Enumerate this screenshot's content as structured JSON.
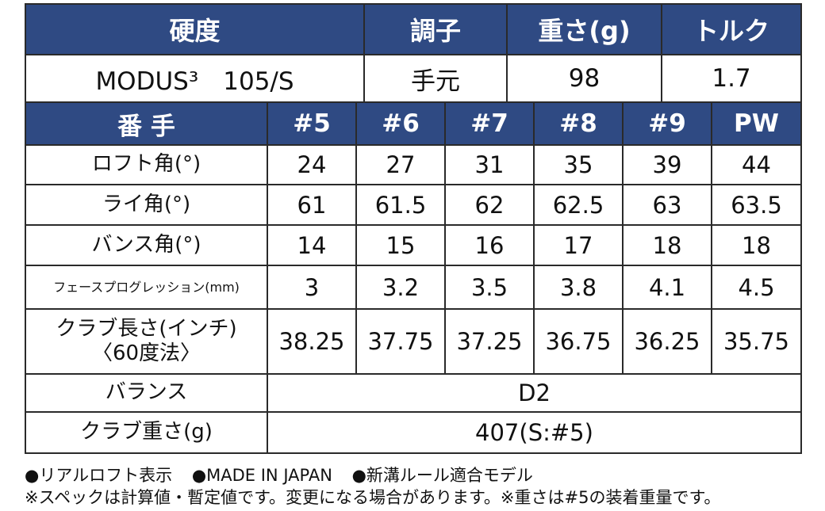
{
  "shaft": {
    "headers": [
      "硬度",
      "調子",
      "重さ(g)",
      "トルク"
    ],
    "values": [
      "MODUS³　105/S",
      "手元",
      "98",
      "1.7"
    ]
  },
  "spec": {
    "header_label": "番 手",
    "columns": [
      "#5",
      "#6",
      "#7",
      "#8",
      "#9",
      "PW"
    ],
    "rows": [
      {
        "label": "ロフト角(°)",
        "values": [
          "24",
          "27",
          "31",
          "35",
          "39",
          "44"
        ]
      },
      {
        "label": "ライ角(°)",
        "values": [
          "61",
          "61.5",
          "62",
          "62.5",
          "63",
          "63.5"
        ]
      },
      {
        "label": "バンス角(°)",
        "values": [
          "14",
          "15",
          "16",
          "17",
          "18",
          "18"
        ]
      },
      {
        "label": "フェースプログレッション(mm)",
        "values": [
          "3",
          "3.2",
          "3.5",
          "3.8",
          "4.1",
          "4.5"
        ]
      },
      {
        "label_line1": "クラブ長さ(インチ)",
        "label_line2": "〈60度法〉",
        "values": [
          "38.25",
          "37.75",
          "37.25",
          "36.75",
          "36.25",
          "35.75"
        ]
      }
    ],
    "balance": {
      "label": "バランス",
      "value": "D2"
    },
    "weight": {
      "label": "クラブ重さ(g)",
      "value": "407(S:#5)"
    }
  },
  "notes": {
    "line1": [
      "●リアルロフト表示",
      "●MADE IN JAPAN",
      "●新溝ルール適合モデル"
    ],
    "line2": "※スペックは計算値・暫定値です。変更になる場合があります。※重さは#5の装着重量です。"
  }
}
